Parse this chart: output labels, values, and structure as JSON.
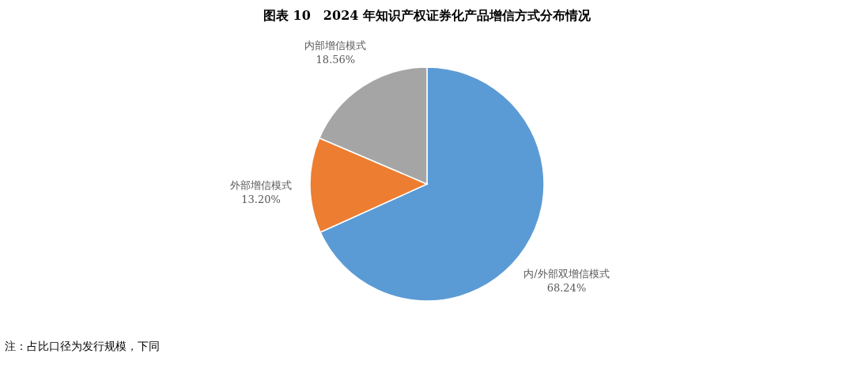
{
  "chart_data": {
    "type": "pie",
    "title": "图表 10　2024 年知识产权证券化产品增信方式分布情况",
    "categories": [
      "内/外部双增信模式",
      "外部增信模式",
      "内部增信模式"
    ],
    "values": [
      68.24,
      13.2,
      18.56
    ],
    "value_labels": [
      "68.24%",
      "13.20%",
      "18.56%"
    ],
    "colors": [
      "#5b9bd5",
      "#ed7d31",
      "#a5a5a5"
    ],
    "annotations": [
      "注：占比口径为发行规模，下同"
    ]
  }
}
